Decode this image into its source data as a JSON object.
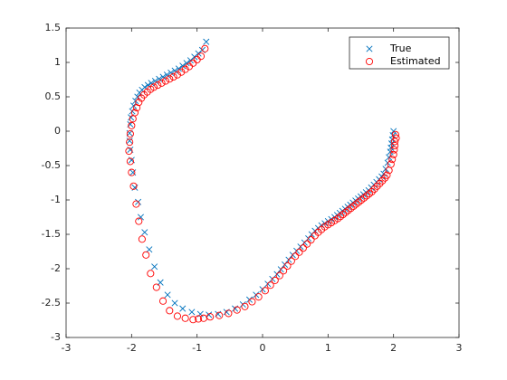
{
  "chart_data": {
    "type": "scatter",
    "title": "",
    "xlabel": "",
    "ylabel": "",
    "xlim": [
      -3,
      3
    ],
    "ylim": [
      -3,
      1.5
    ],
    "xticks": [
      "-3",
      "-2",
      "-1",
      "0",
      "1",
      "2",
      "3"
    ],
    "yticks": [
      "-3",
      "-2.5",
      "-2",
      "-1.5",
      "-1",
      "-0.5",
      "0",
      "0.5",
      "1",
      "1.5"
    ],
    "grid": false,
    "legend_position": "top-right",
    "series": [
      {
        "name": "True",
        "marker": "x",
        "color": "#0072BD",
        "x": [
          2.0,
          1.99,
          1.98,
          1.97,
          1.96,
          1.95,
          1.93,
          1.91,
          1.88,
          1.85,
          1.82,
          1.78,
          1.74,
          1.7,
          1.66,
          1.62,
          1.58,
          1.54,
          1.5,
          1.46,
          1.42,
          1.38,
          1.34,
          1.3,
          1.26,
          1.22,
          1.18,
          1.14,
          1.1,
          1.05,
          1.0,
          0.95,
          0.9,
          0.85,
          0.8,
          0.75,
          0.7,
          0.64,
          0.58,
          0.52,
          0.46,
          0.4,
          0.34,
          0.28,
          0.22,
          0.15,
          0.08,
          0.0,
          -0.1,
          -0.2,
          -0.3,
          -0.42,
          -0.55,
          -0.68,
          -0.82,
          -0.95,
          -1.08,
          -1.22,
          -1.34,
          -1.45,
          -1.56,
          -1.65,
          -1.73,
          -1.8,
          -1.86,
          -1.9,
          -1.95,
          -1.98,
          -2.0,
          -2.02,
          -2.03,
          -2.03,
          -2.02,
          -2.01,
          -1.99,
          -1.97,
          -1.94,
          -1.91,
          -1.88,
          -1.84,
          -1.8,
          -1.75,
          -1.7,
          -1.64,
          -1.58,
          -1.52,
          -1.46,
          -1.4,
          -1.34,
          -1.28,
          -1.22,
          -1.16,
          -1.1,
          -1.04,
          -0.98,
          -0.92,
          -0.86
        ],
        "y": [
          0.0,
          -0.06,
          -0.12,
          -0.18,
          -0.24,
          -0.3,
          -0.38,
          -0.46,
          -0.55,
          -0.62,
          -0.66,
          -0.7,
          -0.74,
          -0.78,
          -0.82,
          -0.86,
          -0.89,
          -0.92,
          -0.95,
          -0.98,
          -1.01,
          -1.04,
          -1.07,
          -1.1,
          -1.13,
          -1.16,
          -1.19,
          -1.22,
          -1.25,
          -1.28,
          -1.31,
          -1.34,
          -1.37,
          -1.41,
          -1.45,
          -1.5,
          -1.56,
          -1.62,
          -1.68,
          -1.74,
          -1.8,
          -1.87,
          -1.94,
          -2.01,
          -2.08,
          -2.15,
          -2.22,
          -2.3,
          -2.38,
          -2.45,
          -2.52,
          -2.58,
          -2.63,
          -2.66,
          -2.67,
          -2.66,
          -2.63,
          -2.58,
          -2.5,
          -2.38,
          -2.2,
          -1.97,
          -1.72,
          -1.47,
          -1.25,
          -1.03,
          -0.82,
          -0.6,
          -0.42,
          -0.27,
          -0.14,
          -0.03,
          0.1,
          0.2,
          0.29,
          0.37,
          0.44,
          0.5,
          0.56,
          0.6,
          0.64,
          0.67,
          0.7,
          0.73,
          0.76,
          0.79,
          0.82,
          0.85,
          0.88,
          0.91,
          0.95,
          0.99,
          1.03,
          1.08,
          1.13,
          1.18,
          1.3
        ]
      },
      {
        "name": "Estimated",
        "marker": "o",
        "color": "#FF0000",
        "x": [
          2.04,
          2.03,
          2.02,
          2.02,
          2.01,
          2.0,
          1.98,
          1.96,
          1.93,
          1.9,
          1.87,
          1.83,
          1.79,
          1.75,
          1.71,
          1.67,
          1.63,
          1.59,
          1.55,
          1.51,
          1.47,
          1.43,
          1.39,
          1.35,
          1.31,
          1.27,
          1.23,
          1.19,
          1.15,
          1.1,
          1.05,
          1.0,
          0.95,
          0.9,
          0.85,
          0.8,
          0.74,
          0.68,
          0.62,
          0.56,
          0.5,
          0.44,
          0.38,
          0.32,
          0.26,
          0.19,
          0.12,
          0.04,
          -0.06,
          -0.16,
          -0.27,
          -0.39,
          -0.52,
          -0.66,
          -0.8,
          -0.9,
          -0.98,
          -1.06,
          -1.18,
          -1.3,
          -1.42,
          -1.52,
          -1.62,
          -1.71,
          -1.78,
          -1.84,
          -1.89,
          -1.93,
          -1.97,
          -2.0,
          -2.02,
          -2.04,
          -2.03,
          -2.02,
          -2.0,
          -1.98,
          -1.95,
          -1.92,
          -1.89,
          -1.85,
          -1.81,
          -1.76,
          -1.71,
          -1.66,
          -1.6,
          -1.54,
          -1.48,
          -1.42,
          -1.36,
          -1.3,
          -1.24,
          -1.18,
          -1.12,
          -1.06,
          -1.0,
          -0.94,
          -0.88
        ],
        "y": [
          -0.1,
          -0.05,
          -0.15,
          -0.21,
          -0.27,
          -0.34,
          -0.41,
          -0.48,
          -0.57,
          -0.64,
          -0.68,
          -0.72,
          -0.76,
          -0.8,
          -0.84,
          -0.88,
          -0.91,
          -0.94,
          -0.97,
          -1.0,
          -1.03,
          -1.06,
          -1.09,
          -1.12,
          -1.15,
          -1.18,
          -1.21,
          -1.24,
          -1.27,
          -1.3,
          -1.33,
          -1.36,
          -1.39,
          -1.43,
          -1.47,
          -1.52,
          -1.58,
          -1.64,
          -1.7,
          -1.76,
          -1.82,
          -1.89,
          -1.96,
          -2.03,
          -2.1,
          -2.17,
          -2.24,
          -2.32,
          -2.41,
          -2.48,
          -2.55,
          -2.6,
          -2.65,
          -2.68,
          -2.7,
          -2.72,
          -2.73,
          -2.74,
          -2.72,
          -2.69,
          -2.61,
          -2.47,
          -2.27,
          -2.07,
          -1.8,
          -1.57,
          -1.31,
          -1.06,
          -0.8,
          -0.6,
          -0.44,
          -0.29,
          -0.16,
          -0.04,
          0.08,
          0.18,
          0.27,
          0.34,
          0.42,
          0.48,
          0.53,
          0.57,
          0.61,
          0.64,
          0.67,
          0.7,
          0.73,
          0.76,
          0.79,
          0.82,
          0.86,
          0.9,
          0.94,
          0.99,
          1.04,
          1.09,
          1.2
        ]
      }
    ]
  }
}
